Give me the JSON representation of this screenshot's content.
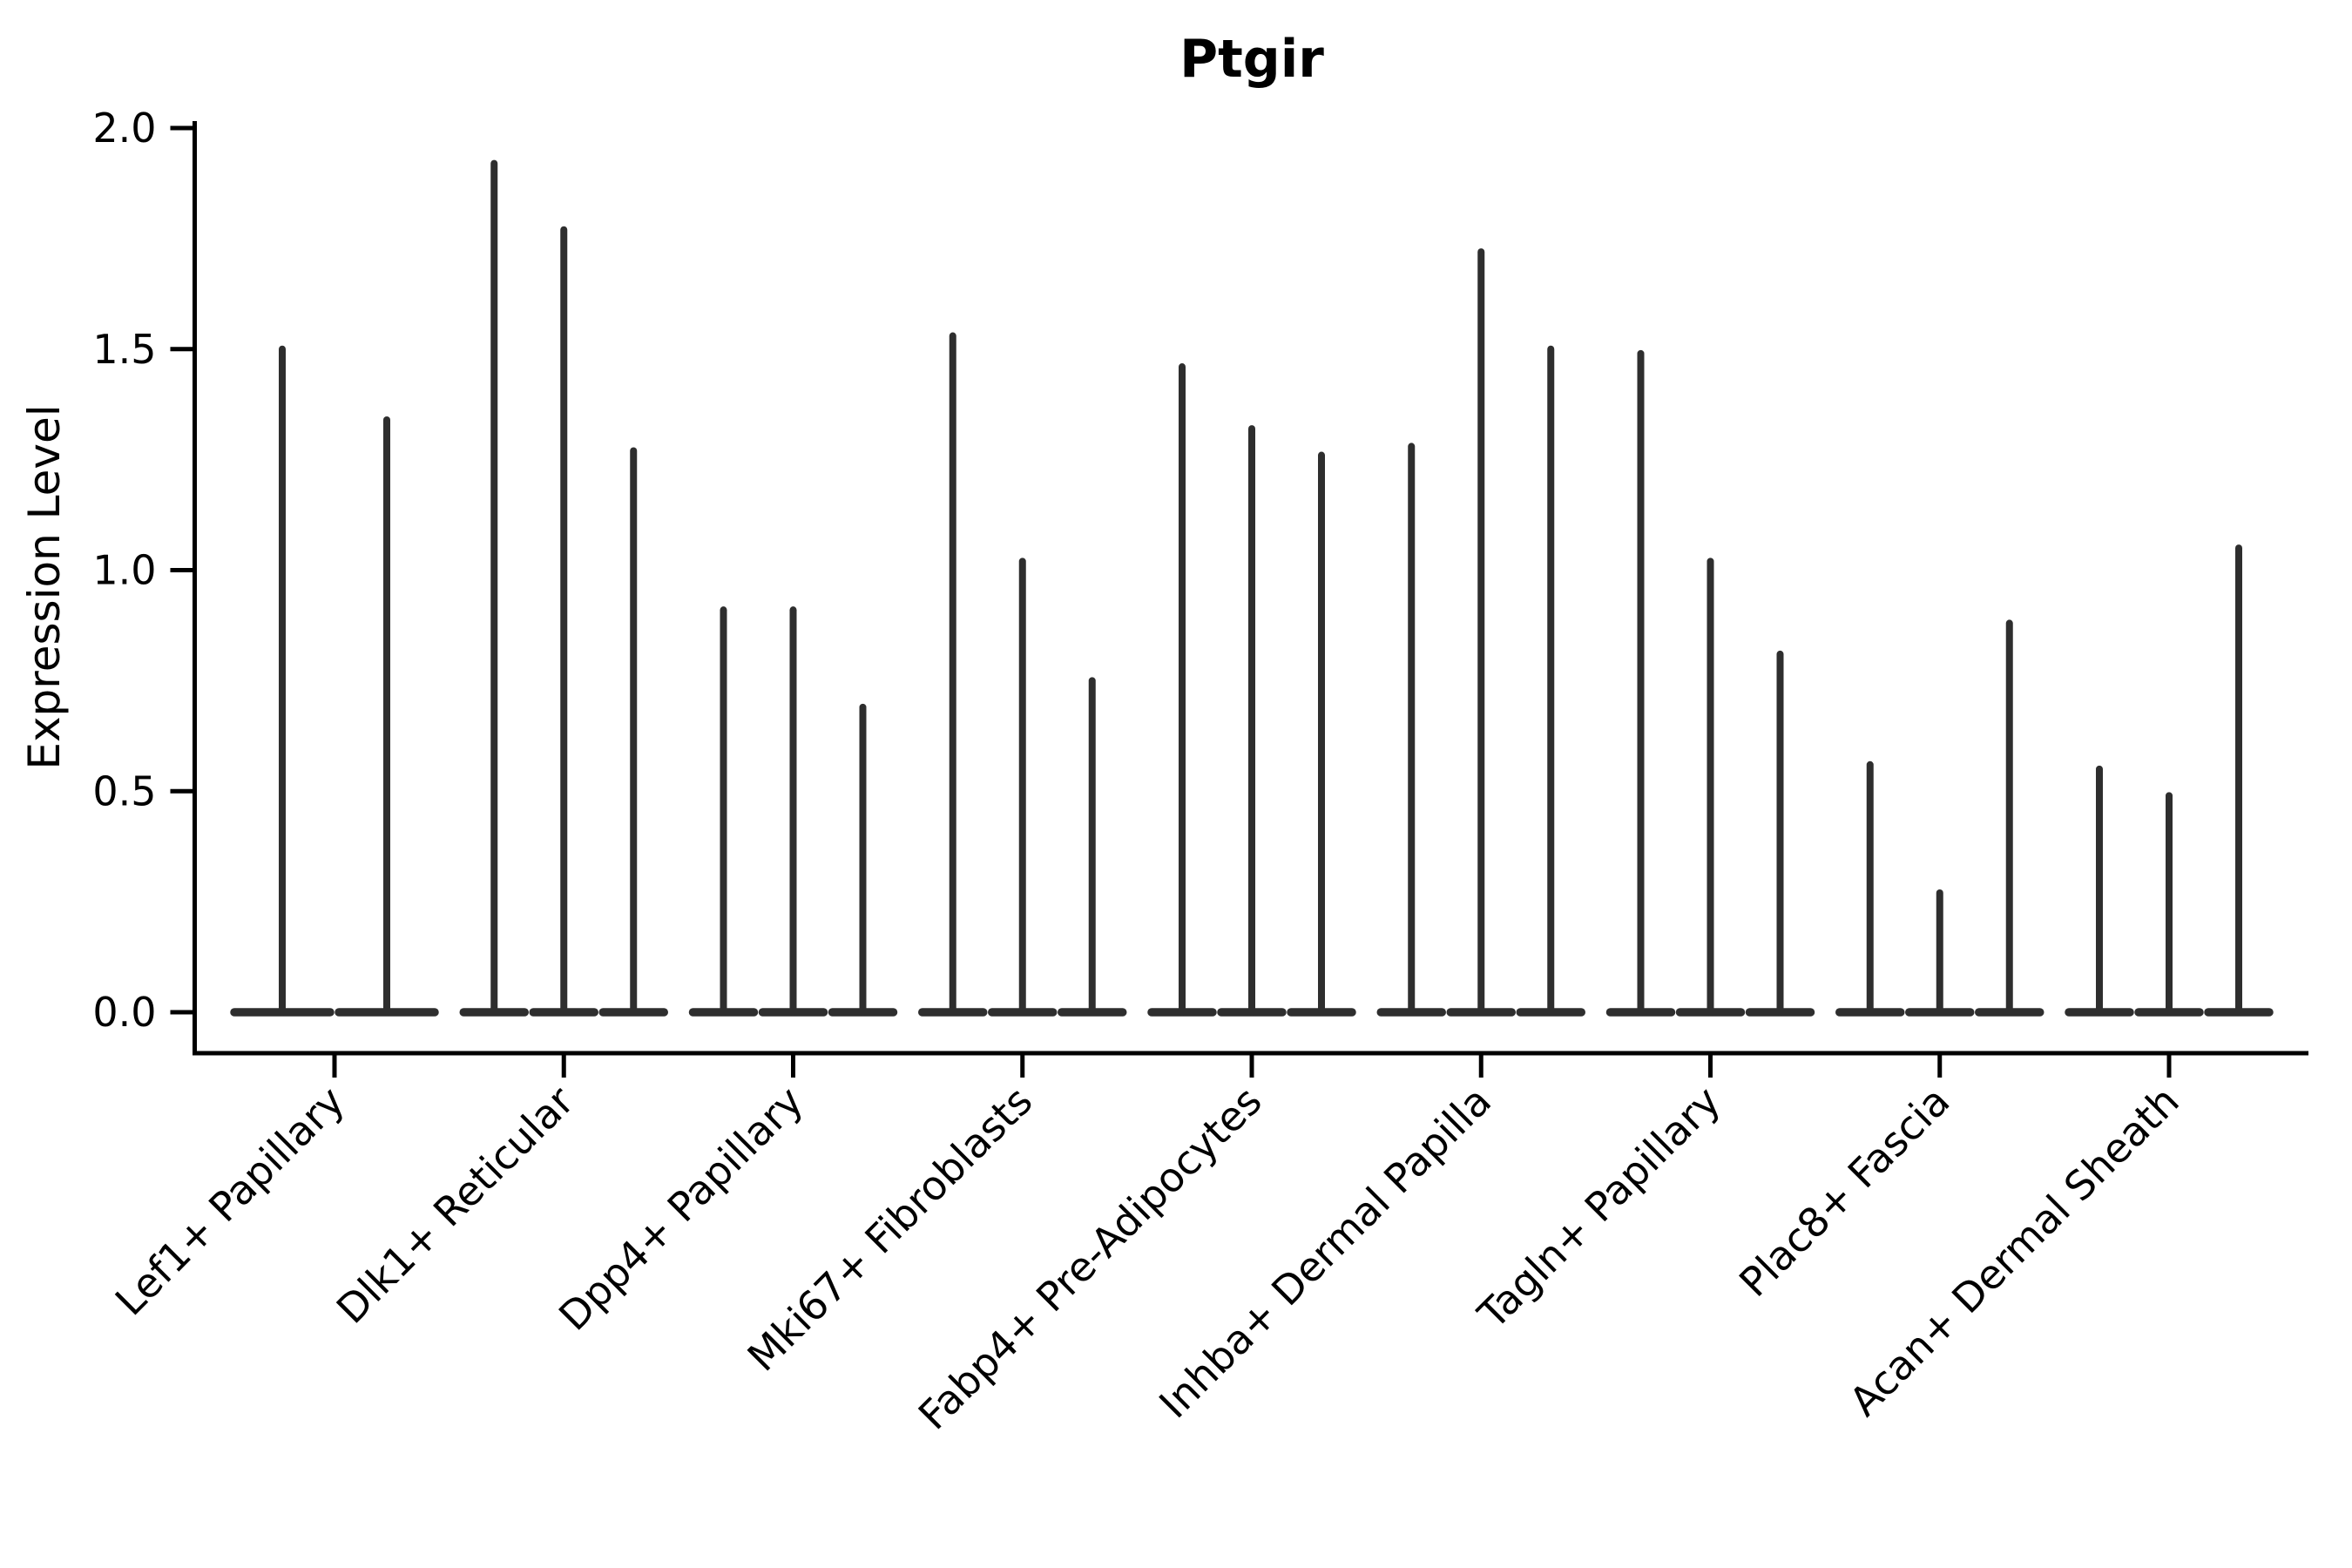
{
  "chart_data": {
    "type": "violin",
    "title": "Ptgir",
    "xlabel": "",
    "ylabel": "Expression Level",
    "ylim": [
      -0.09,
      2.02
    ],
    "ytick_labels": [
      "0.0",
      "0.5",
      "1.0",
      "1.5",
      "2.0"
    ],
    "ytick_values": [
      0,
      0.5,
      1,
      1.5,
      2
    ],
    "grid": false,
    "legend": null,
    "ink_color": "#2e2e2e",
    "axis_color": "#000000",
    "description": "Thin violin plots of Ptgir expression per fibroblast subtype; each category holds 2-3 extremely thin violins (spikes) with a wide flat base at zero. 'maxima' lists the top expression value reached by each violin, left to right.",
    "categories": [
      "Lef1+ Papillary",
      "Dlk1+ Reticular",
      "Dpp4+ Papillary",
      "Mki67+ Fibroblasts",
      "Fabp4+ Pre-Adipocytes",
      "Inhba+ Dermal Papilla",
      "Tagln+ Papillary",
      "Plac8+ Fascia",
      "Acan+ Dermal Sheath"
    ],
    "violins": [
      {
        "category": "Lef1+ Papillary",
        "maxima": [
          1.5,
          1.34
        ]
      },
      {
        "category": "Dlk1+ Reticular",
        "maxima": [
          1.92,
          1.77,
          1.27
        ]
      },
      {
        "category": "Dpp4+ Papillary",
        "maxima": [
          0.91,
          0.91,
          0.69
        ]
      },
      {
        "category": "Mki67+ Fibroblasts",
        "maxima": [
          1.53,
          1.02,
          0.75
        ]
      },
      {
        "category": "Fabp4+ Pre-Adipocytes",
        "maxima": [
          1.46,
          1.32,
          1.26
        ]
      },
      {
        "category": "Inhba+ Dermal Papilla",
        "maxima": [
          1.28,
          1.72,
          1.5
        ]
      },
      {
        "category": "Tagln+ Papillary",
        "maxima": [
          1.49,
          1.02,
          0.81
        ]
      },
      {
        "category": "Plac8+ Fascia",
        "maxima": [
          0.56,
          0.27,
          0.88
        ]
      },
      {
        "category": "Acan+ Dermal Sheath",
        "maxima": [
          0.55,
          0.49,
          1.05
        ]
      }
    ]
  }
}
